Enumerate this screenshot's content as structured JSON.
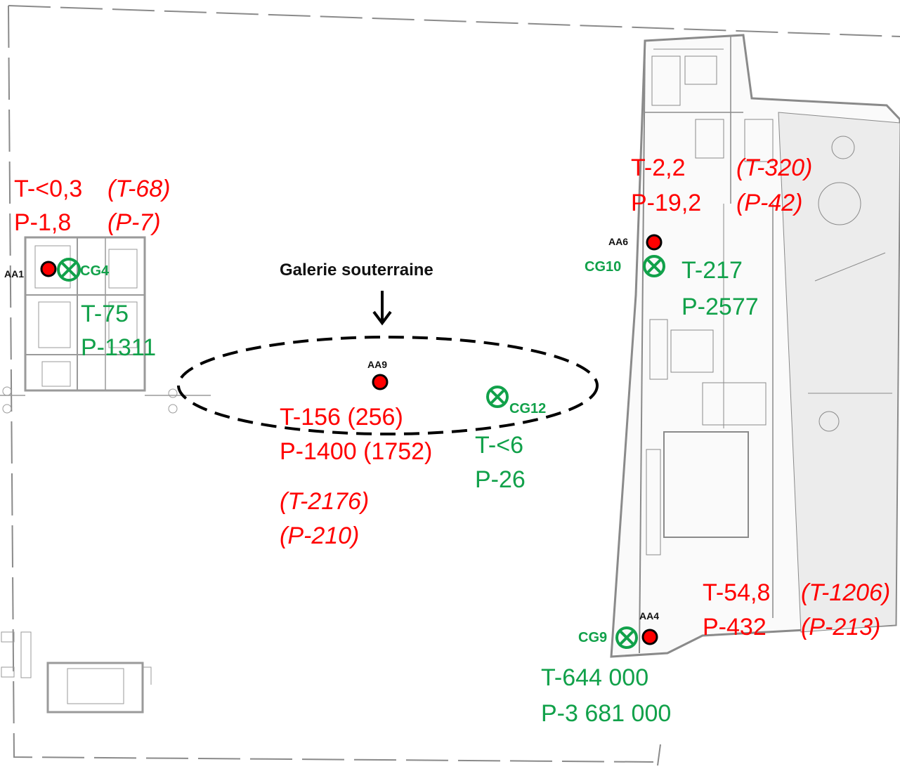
{
  "title": "Galerie souterraine",
  "colors": {
    "red": "#ff0000",
    "green": "#11a14a",
    "plan": "#8a8a8a"
  },
  "points": {
    "aa1": {
      "id": "AA1"
    },
    "aa4": {
      "id": "AA4"
    },
    "aa6": {
      "id": "AA6"
    },
    "aa9": {
      "id": "AA9"
    },
    "cg4": {
      "id": "CG4"
    },
    "cg9": {
      "id": "CG9"
    },
    "cg10": {
      "id": "CG10"
    },
    "cg12": {
      "id": "CG12"
    }
  },
  "measurements": {
    "aa1": {
      "t": "T-<0,3",
      "p": "P-1,8",
      "t_prev": "(T-68)",
      "p_prev": "(P-7)"
    },
    "aa6": {
      "t": "T-2,2",
      "p": "P-19,2",
      "t_prev": "(T-320)",
      "p_prev": "(P-42)"
    },
    "aa9": {
      "t": "T-156 (256)",
      "p": "P-1400 (1752)",
      "t_prev": "(T-2176)",
      "p_prev": "(P-210)"
    },
    "aa4": {
      "t": "T-54,8",
      "p": "P-432",
      "t_prev": "(T-1206)",
      "p_prev": "(P-213)"
    },
    "cg4": {
      "t": "T-75",
      "p": "P-1311"
    },
    "cg10": {
      "t": "T-217",
      "p": "P-2577"
    },
    "cg12": {
      "t": "T-<6",
      "p": "P-26"
    },
    "cg9": {
      "t": "T-644 000",
      "p": "P-3 681 000"
    }
  }
}
